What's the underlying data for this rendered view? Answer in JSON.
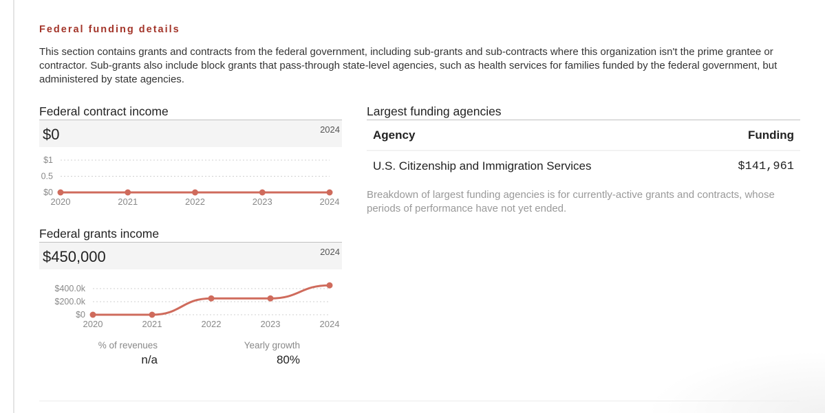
{
  "section": {
    "title": "Federal funding details",
    "intro": "This section contains grants and contracts from the federal government, including sub-grants and sub-contracts where this organization isn't the prime grantee or contractor. Sub-grants also include block grants that pass-through state-level agencies, such as health services for families funded by the federal government, but administered by state agencies."
  },
  "contract_panel": {
    "title": "Federal contract income",
    "value": "$0",
    "year": "2024"
  },
  "grants_panel": {
    "title": "Federal grants income",
    "value": "$450,000",
    "year": "2024",
    "stats": [
      {
        "label": "% of revenues",
        "value": "n/a"
      },
      {
        "label": "Yearly growth",
        "value": "80%"
      }
    ]
  },
  "agencies": {
    "title": "Largest funding agencies",
    "columns": [
      "Agency",
      "Funding"
    ],
    "rows": [
      {
        "agency": "U.S. Citizenship and Immigration Services",
        "funding": "$141,961"
      }
    ],
    "note": "Breakdown of largest funding agencies is for currently-active grants and contracts, whose periods of performance have not yet ended."
  },
  "colors": {
    "accent": "#a3352a",
    "line": "#cf6b5c"
  },
  "chart_data": [
    {
      "type": "line",
      "title": "Federal contract income",
      "x": [
        "2020",
        "2021",
        "2022",
        "2023",
        "2024"
      ],
      "series": [
        {
          "name": "Federal contract income",
          "values": [
            0,
            0,
            0,
            0,
            0
          ]
        }
      ],
      "yticks": [
        0,
        0.5,
        1
      ],
      "ytick_labels": [
        "$0",
        "0.5",
        "$1"
      ],
      "ylim": [
        0,
        1
      ],
      "grid": true,
      "xlabel": "",
      "ylabel": ""
    },
    {
      "type": "line",
      "title": "Federal grants income",
      "x": [
        "2020",
        "2021",
        "2022",
        "2023",
        "2024"
      ],
      "series": [
        {
          "name": "Federal grants income",
          "values": [
            0,
            0,
            250000,
            250000,
            450000
          ]
        }
      ],
      "yticks": [
        0,
        200000,
        400000
      ],
      "ytick_labels": [
        "$0",
        "$200.0k",
        "$400.0k"
      ],
      "ylim": [
        0,
        450000
      ],
      "grid": true,
      "xlabel": "",
      "ylabel": ""
    }
  ]
}
